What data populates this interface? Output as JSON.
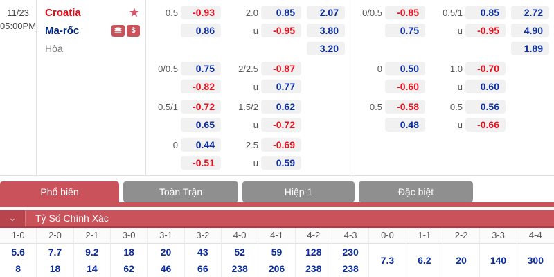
{
  "palette": {
    "home_red": "#e50b17",
    "away_blue": "#002786",
    "odd_blue": "#0b2da0",
    "odd_red": "#e8101e",
    "odd_cell_bg": "#f1f1f1",
    "accent_red": "#c9525b",
    "accent_red_dark": "#b8444e",
    "tab_gray": "#8f8f8f"
  },
  "glyphs": {
    "star": "★",
    "dollar": "$",
    "chevron": "⌄"
  },
  "match": {
    "date": "11/23",
    "time": "05:00PM",
    "home_team": "Croatia",
    "away_team": "Ma-rốc",
    "draw_label": "Hòa"
  },
  "odds_sections": [
    {
      "id": "full",
      "groups": [
        [
          [
            "0.5",
            "-0.93",
            "2.0",
            "0.85",
            "2.07"
          ],
          [
            "",
            "0.86",
            "u",
            "-0.95",
            "3.80"
          ],
          [
            "",
            "",
            "",
            "",
            "3.20"
          ]
        ],
        [
          [
            "0/0.5",
            "0.75",
            "2/2.5",
            "-0.87",
            ""
          ],
          [
            "",
            "-0.82",
            "u",
            "0.77",
            ""
          ]
        ],
        [
          [
            "0.5/1",
            "-0.72",
            "1.5/2",
            "0.62",
            ""
          ],
          [
            "",
            "0.65",
            "u",
            "-0.72",
            ""
          ]
        ],
        [
          [
            "0",
            "0.44",
            "2.5",
            "-0.69",
            ""
          ],
          [
            "",
            "-0.51",
            "u",
            "0.59",
            ""
          ]
        ]
      ]
    },
    {
      "id": "half",
      "groups": [
        [
          [
            "0/0.5",
            "-0.85",
            "0.5/1",
            "0.85",
            "2.72"
          ],
          [
            "",
            "0.75",
            "u",
            "-0.95",
            "4.90"
          ],
          [
            "",
            "",
            "",
            "",
            "1.89"
          ]
        ],
        [
          [
            "0",
            "0.50",
            "1.0",
            "-0.70",
            ""
          ],
          [
            "",
            "-0.60",
            "u",
            "0.60",
            ""
          ]
        ],
        [
          [
            "0.5",
            "-0.58",
            "0.5",
            "0.56",
            ""
          ],
          [
            "",
            "0.48",
            "u",
            "-0.66",
            ""
          ]
        ]
      ]
    }
  ],
  "tabs": [
    {
      "label": "Phổ biến",
      "active": true
    },
    {
      "label": "Toàn Trận",
      "active": false
    },
    {
      "label": "Hiệp 1",
      "active": false
    },
    {
      "label": "Đặc biệt",
      "active": false
    }
  ],
  "correct_score": {
    "title": "Tỷ Số Chính Xác",
    "columns": [
      {
        "score": "1-0",
        "odds": [
          "5.6",
          "8"
        ]
      },
      {
        "score": "2-0",
        "odds": [
          "7.7",
          "18"
        ]
      },
      {
        "score": "2-1",
        "odds": [
          "9.2",
          "14"
        ]
      },
      {
        "score": "3-0",
        "odds": [
          "18",
          "62"
        ]
      },
      {
        "score": "3-1",
        "odds": [
          "20",
          "46"
        ]
      },
      {
        "score": "3-2",
        "odds": [
          "43",
          "66"
        ]
      },
      {
        "score": "4-0",
        "odds": [
          "52",
          "238"
        ]
      },
      {
        "score": "4-1",
        "odds": [
          "59",
          "206"
        ]
      },
      {
        "score": "4-2",
        "odds": [
          "128",
          "238"
        ]
      },
      {
        "score": "4-3",
        "odds": [
          "230",
          "238"
        ]
      },
      {
        "score": "0-0",
        "odds": [
          "7.3"
        ]
      },
      {
        "score": "1-1",
        "odds": [
          "6.2"
        ]
      },
      {
        "score": "2-2",
        "odds": [
          "20"
        ]
      },
      {
        "score": "3-3",
        "odds": [
          "140"
        ]
      },
      {
        "score": "4-4",
        "odds": [
          "300"
        ]
      }
    ]
  }
}
